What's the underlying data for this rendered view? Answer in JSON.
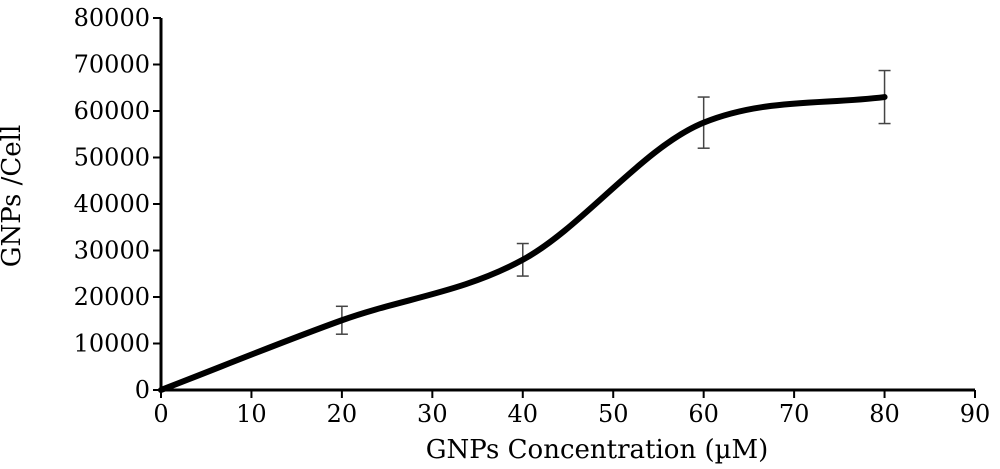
{
  "chart_data": {
    "type": "line",
    "title": "",
    "xlabel": "GNPs Concentration (µM)",
    "ylabel": "GNPs /Cell",
    "xlim": [
      0,
      90
    ],
    "ylim": [
      0,
      80000
    ],
    "x_ticks": [
      0,
      10,
      20,
      30,
      40,
      50,
      60,
      70,
      80,
      90
    ],
    "y_ticks": [
      0,
      10000,
      20000,
      30000,
      40000,
      50000,
      60000,
      70000,
      80000
    ],
    "grid": false,
    "legend": "none",
    "series": [
      {
        "x": [
          0,
          20,
          40,
          60,
          80
        ],
        "y": [
          0,
          15000,
          28000,
          57500,
          63000
        ],
        "error": [
          0,
          3000,
          3500,
          5500,
          5700
        ],
        "color": "#000000"
      }
    ]
  }
}
